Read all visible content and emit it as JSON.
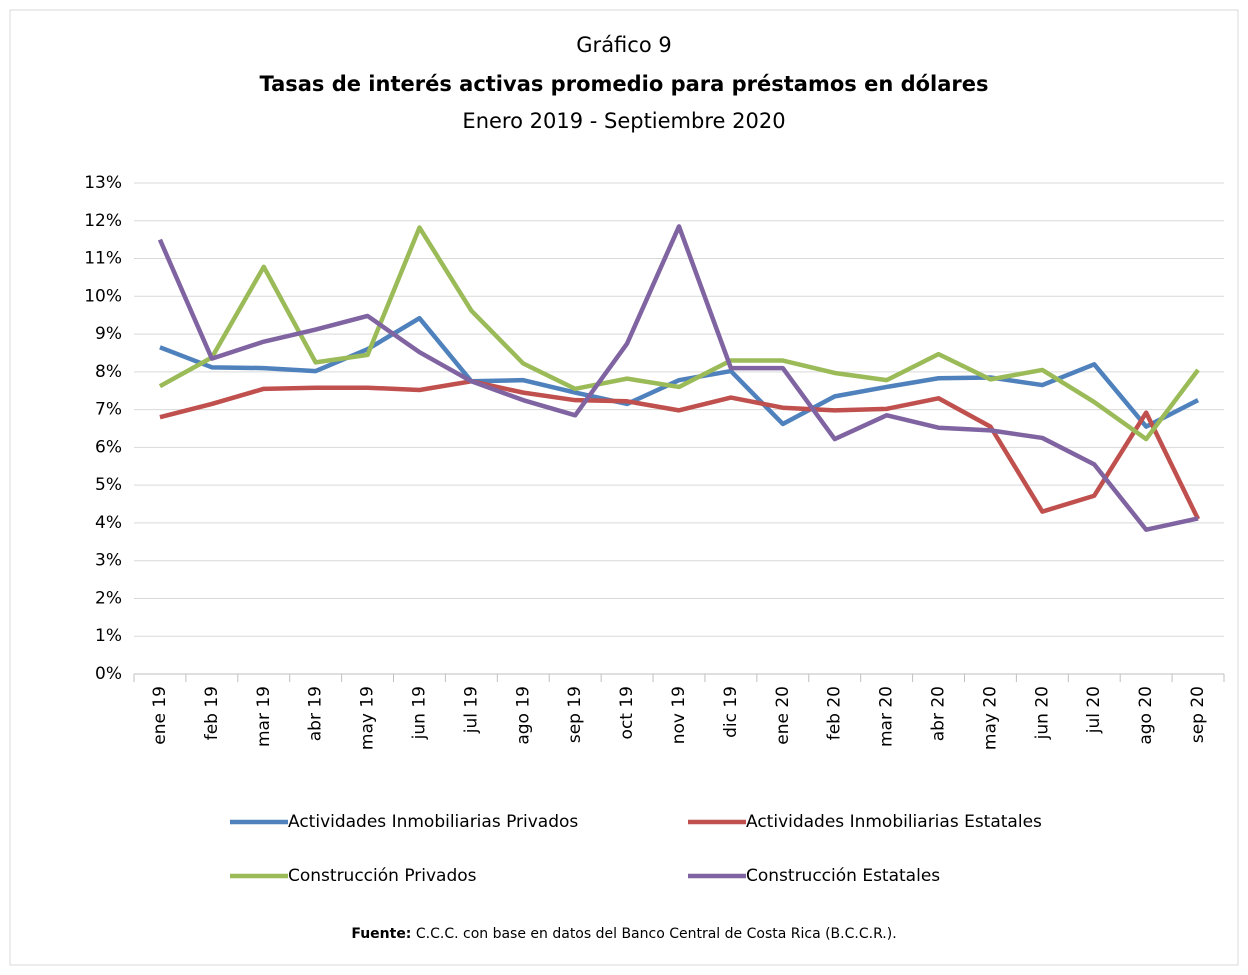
{
  "chart_data": {
    "type": "line",
    "title": "Gráfico 9",
    "subtitle": "Tasas de interés activas promedio para préstamos en dólares",
    "period": "Enero 2019 - Septiembre 2020",
    "categories": [
      "ene 19",
      "feb 19",
      "mar 19",
      "abr 19",
      "may 19",
      "jun 19",
      "jul 19",
      "ago 19",
      "sep 19",
      "oct 19",
      "nov 19",
      "dic 19",
      "ene 20",
      "feb 20",
      "mar 20",
      "abr 20",
      "may 20",
      "jun 20",
      "jul 20",
      "ago 20",
      "sep 20"
    ],
    "series": [
      {
        "name": "Actividades Inmobiliarias Privados",
        "color": "#4f81bd",
        "values": [
          8.65,
          8.12,
          8.1,
          8.02,
          8.6,
          9.42,
          7.75,
          7.78,
          7.45,
          7.15,
          7.78,
          8.02,
          6.62,
          7.35,
          7.6,
          7.83,
          7.85,
          7.65,
          8.2,
          6.55,
          7.25
        ]
      },
      {
        "name": "Actividades Inmobiliarias Estatales",
        "color": "#c0504d",
        "values": [
          6.8,
          7.15,
          7.55,
          7.58,
          7.58,
          7.52,
          7.75,
          7.45,
          7.25,
          7.22,
          6.98,
          7.32,
          7.05,
          6.98,
          7.02,
          7.3,
          6.55,
          4.3,
          4.72,
          6.92,
          4.1
        ]
      },
      {
        "name": "Construcción Privados",
        "color": "#9bbb59",
        "values": [
          7.62,
          8.38,
          10.78,
          8.25,
          8.45,
          11.82,
          9.62,
          8.22,
          7.55,
          7.82,
          7.6,
          8.3,
          8.3,
          7.97,
          7.78,
          8.47,
          7.8,
          8.05,
          7.2,
          6.22,
          8.05
        ]
      },
      {
        "name": "Construcción Estatales",
        "color": "#8064a2",
        "values": [
          11.5,
          8.35,
          8.8,
          9.12,
          9.48,
          8.52,
          7.75,
          7.25,
          6.85,
          8.75,
          11.85,
          8.1,
          8.1,
          6.22,
          6.85,
          6.52,
          6.45,
          6.25,
          5.55,
          3.82,
          4.12
        ]
      }
    ],
    "ylim": [
      0,
      13
    ],
    "yticks": [
      {
        "value": 0,
        "label": "0%"
      },
      {
        "value": 1,
        "label": "1%"
      },
      {
        "value": 2,
        "label": "2%"
      },
      {
        "value": 3,
        "label": "3%"
      },
      {
        "value": 4,
        "label": "4%"
      },
      {
        "value": 5,
        "label": "5%"
      },
      {
        "value": 6,
        "label": "6%"
      },
      {
        "value": 7,
        "label": "7%"
      },
      {
        "value": 8,
        "label": "8%"
      },
      {
        "value": 9,
        "label": "9%"
      },
      {
        "value": 10,
        "label": "10%"
      },
      {
        "value": 11,
        "label": "11%"
      },
      {
        "value": 12,
        "label": "12%"
      },
      {
        "value": 13,
        "label": "13%"
      }
    ],
    "grid": true,
    "source": {
      "label": "Fuente:",
      "text": "C.C.C. con base en datos del Banco Central de Costa Rica (B.C.C.R.)."
    }
  }
}
